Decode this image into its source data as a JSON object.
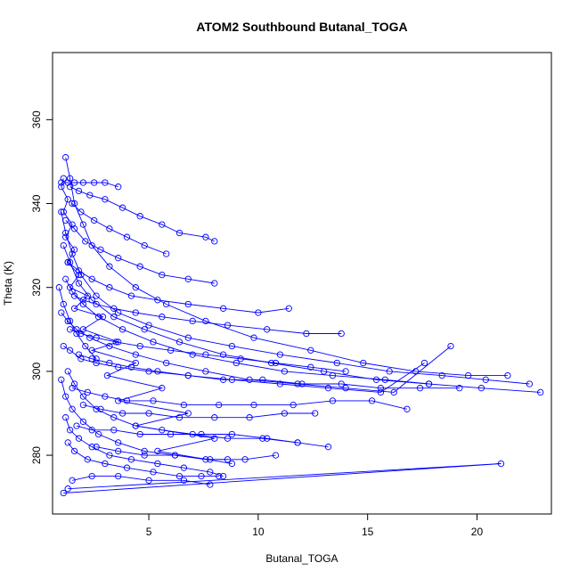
{
  "chart_data": {
    "type": "line",
    "title": "ATOM2 Southbound Butanal_TOGA",
    "xlabel": "Butanal_TOGA",
    "ylabel": "Theta (K)",
    "xlim": [
      0.6,
      23.4
    ],
    "ylim": [
      266,
      376
    ],
    "x_ticks": [
      5,
      10,
      15,
      20
    ],
    "y_ticks": [
      280,
      300,
      320,
      340,
      360
    ],
    "color": "#0000ff",
    "marker": "open-circle",
    "grid": false,
    "legend": "none",
    "series": [
      {
        "x": [
          1.1,
          1.0,
          1.3,
          1.1,
          1.5,
          1.2,
          1.6,
          1.3,
          1.8,
          1.4,
          2.2,
          1.6,
          2.9,
          2.0,
          3.6,
          2.4,
          4.4,
          3.1,
          5.6,
          3.6,
          6.8,
          4.4,
          8.0,
          5.4,
          8.8
        ],
        "y": [
          346,
          344,
          341,
          338,
          335,
          332,
          329,
          326,
          323,
          320,
          318,
          315,
          313,
          310,
          307,
          305,
          302,
          299,
          296,
          293,
          290,
          287,
          284,
          281,
          278
        ]
      },
      {
        "x": [
          1.2,
          1.4,
          1.6,
          2.0,
          2.4,
          3.2,
          4.4,
          5.8,
          7.6,
          9.8,
          12.4,
          14.8,
          17.2,
          19.6,
          21.4
        ],
        "y": [
          351,
          346,
          340,
          335,
          330,
          325,
          320,
          316,
          312,
          308,
          305,
          302,
          300,
          299,
          299
        ]
      },
      {
        "x": [
          1.0,
          1.2,
          1.5,
          1.9,
          2.6,
          3.6,
          5.0,
          6.8,
          8.8,
          11.0,
          13.6,
          16.0,
          18.4,
          20.4,
          22.4
        ],
        "y": [
          338,
          333,
          328,
          323,
          318,
          314,
          311,
          308,
          306,
          304,
          302,
          300,
          299,
          298,
          297
        ]
      },
      {
        "x": [
          1.1,
          1.4,
          1.8,
          2.4,
          3.4,
          4.8,
          6.4,
          8.4,
          10.6,
          13.0,
          15.4,
          17.8,
          20.2,
          22.9
        ],
        "y": [
          330,
          326,
          321,
          317,
          313,
          310,
          307,
          304,
          302,
          300,
          298,
          297,
          296,
          295
        ]
      },
      {
        "x": [
          1.2,
          1.5,
          2.0,
          2.7,
          3.8,
          5.2,
          7.0,
          9.0,
          11.2,
          13.4,
          15.8,
          17.8
        ],
        "y": [
          322,
          319,
          316,
          313,
          310,
          307,
          304,
          302,
          300,
          299,
          298,
          297
        ]
      },
      {
        "x": [
          1.0,
          1.3,
          1.7,
          2.3,
          3.2,
          4.4,
          5.8,
          7.6,
          9.6,
          11.8,
          14.0,
          16.2,
          18.8
        ],
        "y": [
          314,
          312,
          310,
          308,
          306,
          304,
          302,
          300,
          298,
          297,
          296,
          295,
          306
        ]
      },
      {
        "x": [
          1.1,
          1.4,
          1.9,
          2.6,
          3.6,
          5.0,
          6.8,
          8.8,
          11.0,
          13.2,
          15.6,
          17.6
        ],
        "y": [
          306,
          305,
          303,
          302,
          301,
          300,
          299,
          298,
          297,
          296,
          295,
          302
        ]
      },
      {
        "x": [
          1.3,
          1.6,
          2.0,
          2.6,
          3.4,
          4.4,
          5.6,
          7.0,
          8.6,
          10.2,
          11.8,
          13.2
        ],
        "y": [
          300,
          297,
          294,
          291,
          289,
          287,
          286,
          285,
          284,
          284,
          283,
          282
        ]
      },
      {
        "x": [
          1.0,
          1.2,
          1.5,
          2.0,
          2.7,
          3.6,
          4.8,
          6.2,
          7.8,
          9.4,
          10.8
        ],
        "y": [
          298,
          294,
          291,
          288,
          285,
          283,
          281,
          280,
          279,
          279,
          280
        ]
      },
      {
        "x": [
          1.2,
          1.4,
          1.8,
          2.4,
          3.2,
          4.2,
          5.4,
          6.6,
          7.8,
          8.4
        ],
        "y": [
          289,
          286,
          284,
          282,
          280,
          279,
          278,
          277,
          276,
          275
        ]
      },
      {
        "x": [
          1.3,
          1.6,
          2.2,
          3.0,
          4.0,
          5.2,
          6.4,
          7.4,
          8.2
        ],
        "y": [
          283,
          281,
          279,
          278,
          277,
          276,
          275,
          275,
          275
        ]
      },
      {
        "x": [
          1.5,
          2.4,
          3.6,
          5.0,
          6.6,
          7.8
        ],
        "y": [
          274,
          275,
          275,
          274,
          274,
          273
        ]
      },
      {
        "x": [
          1.1,
          21.1,
          1.3
        ],
        "y": [
          271,
          278,
          272
        ]
      },
      {
        "x": [
          1.4,
          1.8,
          2.3,
          3.0,
          3.8,
          4.6,
          5.6,
          6.4,
          7.6,
          8.0
        ],
        "y": [
          344,
          343,
          342,
          341,
          339,
          337,
          335,
          333,
          332,
          331
        ]
      },
      {
        "x": [
          1.5,
          1.9,
          2.5,
          3.2,
          4.0,
          4.8,
          5.8
        ],
        "y": [
          340,
          338,
          336,
          334,
          332,
          330,
          328
        ]
      },
      {
        "x": [
          1.2,
          1.6,
          2.1,
          2.8,
          3.6,
          4.6,
          5.6,
          6.8,
          8.0
        ],
        "y": [
          336,
          334,
          331,
          329,
          327,
          325,
          323,
          322,
          321
        ]
      },
      {
        "x": [
          1.3,
          1.8,
          2.4,
          3.2,
          4.2,
          5.4,
          6.8,
          8.4,
          10.0,
          11.4
        ],
        "y": [
          326,
          324,
          322,
          320,
          318,
          317,
          316,
          315,
          314,
          315
        ]
      },
      {
        "x": [
          1.6,
          2.0,
          2.6,
          3.4,
          4.4,
          5.6,
          7.0,
          8.6,
          10.4,
          12.2,
          13.8
        ],
        "y": [
          318,
          317,
          316,
          315,
          314,
          313,
          312,
          311,
          310,
          309,
          309
        ]
      },
      {
        "x": [
          1.4,
          1.9,
          2.6,
          3.5,
          4.6,
          6.0,
          7.6,
          9.2,
          10.8,
          12.4,
          14.0
        ],
        "y": [
          310,
          309,
          308,
          307,
          306,
          305,
          304,
          303,
          302,
          301,
          300
        ]
      },
      {
        "x": [
          1.8,
          2.4,
          3.2,
          4.2,
          5.4,
          6.8,
          8.4,
          10.2,
          12.0,
          13.8,
          15.6,
          17.4,
          19.2
        ],
        "y": [
          304,
          303,
          302,
          301,
          300,
          299,
          298,
          298,
          297,
          297,
          296,
          296,
          296
        ]
      },
      {
        "x": [
          1.5,
          2.2,
          3.0,
          4.0,
          5.2,
          6.6,
          8.2,
          9.8,
          11.6,
          13.4,
          15.2,
          16.8
        ],
        "y": [
          296,
          295,
          294,
          293,
          293,
          292,
          292,
          292,
          292,
          293,
          293,
          291
        ]
      },
      {
        "x": [
          2.0,
          2.8,
          3.8,
          5.0,
          6.4,
          8.0,
          9.6,
          11.2,
          12.6
        ],
        "y": [
          292,
          291,
          290,
          290,
          289,
          289,
          289,
          290,
          290
        ]
      },
      {
        "x": [
          1.7,
          2.4,
          3.4,
          4.6,
          6.0,
          7.4,
          8.8,
          10.4,
          11.8
        ],
        "y": [
          287,
          286,
          286,
          285,
          285,
          285,
          285,
          284,
          283
        ]
      },
      {
        "x": [
          2.6,
          3.6,
          4.8,
          6.2,
          7.6,
          8.6
        ],
        "y": [
          282,
          281,
          280,
          280,
          279,
          279
        ]
      },
      {
        "x": [
          0.9,
          1.1,
          1.4,
          1.7,
          2.1,
          2.6
        ],
        "y": [
          320,
          316,
          312,
          309,
          306,
          303
        ]
      },
      {
        "x": [
          1.0,
          1.3,
          1.6,
          2.0,
          2.5,
          3.0,
          3.6
        ],
        "y": [
          345,
          345,
          345,
          345,
          345,
          345,
          344
        ]
      }
    ]
  }
}
